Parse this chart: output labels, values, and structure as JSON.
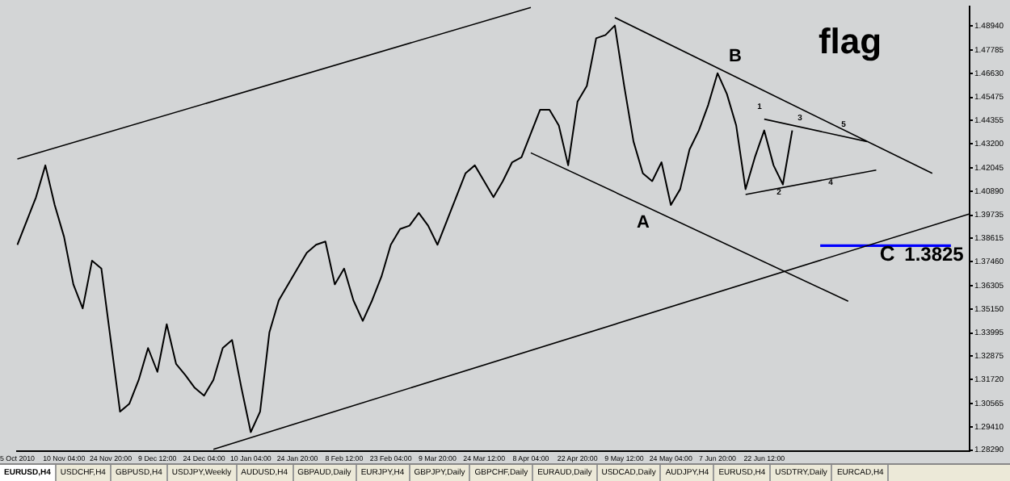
{
  "chart_data": {
    "type": "line",
    "title": "flag",
    "categories": [
      "5 Oct 2010",
      null,
      null,
      null,
      null,
      "10 Nov 04:00",
      null,
      null,
      null,
      null,
      "24 Nov 20:00",
      null,
      null,
      null,
      null,
      "9 Dec 12:00",
      null,
      null,
      null,
      null,
      "24 Dec 04:00",
      null,
      null,
      null,
      null,
      "10 Jan 04:00",
      null,
      null,
      null,
      null,
      "24 Jan 20:00",
      null,
      null,
      null,
      null,
      "8 Feb 12:00",
      null,
      null,
      null,
      null,
      "23 Feb 04:00",
      null,
      null,
      null,
      null,
      "9 Mar 20:00",
      null,
      null,
      null,
      null,
      "24 Mar 12:00",
      null,
      null,
      null,
      null,
      "8 Apr 04:00",
      null,
      null,
      null,
      null,
      "22 Apr 20:00",
      null,
      null,
      null,
      null,
      "9 May 12:00",
      null,
      null,
      null,
      null,
      "24 May 04:00",
      null,
      null,
      null,
      null,
      "7 Jun 20:00",
      null,
      null,
      null,
      null,
      "22 Jun 12:00",
      null,
      null,
      null,
      null,
      null,
      null,
      null,
      null,
      null,
      null,
      null,
      null,
      null,
      null,
      null,
      null,
      null,
      null,
      null,
      null,
      null,
      null
    ],
    "series": [
      {
        "color": "#000000",
        "values": [
          1.3829,
          1.3945,
          1.4061,
          1.4216,
          1.4023,
          1.3868,
          1.3636,
          1.3519,
          1.3752,
          1.3713,
          1.3365,
          1.3016,
          1.3055,
          1.3171,
          1.3326,
          1.321,
          1.3442,
          1.3249,
          1.3194,
          1.3132,
          1.3094,
          1.3171,
          1.3326,
          1.3365,
          1.3132,
          1.2916,
          1.3016,
          1.3403,
          1.3558,
          1.3636,
          1.3713,
          1.379,
          1.3829,
          1.3845,
          1.3636,
          1.3713,
          1.3558,
          1.3458,
          1.3558,
          1.3674,
          1.3829,
          1.3906,
          1.3922,
          1.3984,
          1.3922,
          1.3829,
          1.3945,
          1.4061,
          1.4177,
          1.4216,
          1.4139,
          1.4061,
          1.4139,
          1.4231,
          1.4255,
          1.4371,
          1.4487,
          1.4487,
          1.441,
          1.4216,
          1.4526,
          1.4603,
          1.4835,
          1.4851,
          1.4897,
          1.4603,
          1.4332,
          1.4177,
          1.4139,
          1.4231,
          1.4023,
          1.41,
          1.4293,
          1.4386,
          1.451,
          1.4665,
          1.4564,
          1.441,
          1.41,
          1.4255,
          1.4386,
          1.4216,
          1.4123,
          1.4386,
          null,
          null,
          null,
          null,
          null,
          null,
          null,
          null,
          null,
          null,
          null,
          null,
          null,
          null,
          null,
          null,
          null,
          null,
          null
        ]
      },
      {
        "type": "line",
        "color": "#000000",
        "values": [
          1.4247,
          null,
          null,
          null,
          null,
          null,
          null,
          null,
          null,
          null,
          null,
          null,
          null,
          null,
          null,
          null,
          null,
          null,
          null,
          null,
          null,
          null,
          null,
          null,
          null,
          null,
          null,
          null,
          null,
          null,
          null,
          null,
          null,
          null,
          null,
          null,
          null,
          null,
          null,
          null,
          null,
          null,
          null,
          null,
          null,
          null,
          null,
          null,
          null,
          null,
          null,
          null,
          null,
          null,
          null,
          1.4985,
          null,
          null,
          null,
          null,
          null,
          null,
          null,
          null,
          null,
          null,
          null,
          null,
          null,
          null,
          null,
          null,
          null,
          null,
          null,
          null,
          null,
          null,
          null,
          null,
          null,
          null,
          null,
          null,
          null,
          null,
          null,
          null,
          null,
          null,
          null,
          null,
          null,
          null,
          null,
          null,
          null,
          null,
          null,
          null,
          null,
          null,
          null
        ]
      },
      {
        "type": "line",
        "color": "#000000",
        "values": [
          null,
          null,
          null,
          null,
          null,
          null,
          null,
          null,
          null,
          null,
          null,
          null,
          null,
          null,
          null,
          null,
          null,
          null,
          null,
          null,
          null,
          1.2833,
          null,
          null,
          null,
          null,
          null,
          null,
          null,
          null,
          null,
          null,
          null,
          null,
          null,
          null,
          null,
          null,
          null,
          null,
          null,
          null,
          null,
          null,
          null,
          null,
          null,
          null,
          null,
          null,
          null,
          null,
          null,
          null,
          null,
          null,
          null,
          null,
          null,
          null,
          null,
          null,
          null,
          null,
          null,
          null,
          null,
          null,
          null,
          null,
          null,
          null,
          null,
          null,
          null,
          null,
          null,
          null,
          null,
          null,
          null,
          null,
          null,
          null,
          null,
          null,
          null,
          null,
          null,
          null,
          null,
          null,
          null,
          null,
          null,
          null,
          null,
          null,
          null,
          null,
          null,
          null,
          1.398
        ]
      },
      {
        "type": "line",
        "color": "#000000",
        "values": [
          null,
          null,
          null,
          null,
          null,
          null,
          null,
          null,
          null,
          null,
          null,
          null,
          null,
          null,
          null,
          null,
          null,
          null,
          null,
          null,
          null,
          null,
          null,
          null,
          null,
          null,
          null,
          null,
          null,
          null,
          null,
          null,
          null,
          null,
          null,
          null,
          null,
          null,
          null,
          null,
          null,
          null,
          null,
          null,
          null,
          null,
          null,
          null,
          null,
          null,
          null,
          null,
          null,
          null,
          null,
          null,
          null,
          null,
          null,
          null,
          null,
          null,
          null,
          null,
          1.4936,
          null,
          null,
          null,
          null,
          null,
          null,
          null,
          null,
          null,
          null,
          null,
          null,
          null,
          null,
          null,
          null,
          null,
          null,
          null,
          null,
          null,
          null,
          null,
          null,
          null,
          null,
          null,
          null,
          null,
          null,
          null,
          null,
          null,
          1.4177,
          null,
          null,
          null,
          null
        ]
      },
      {
        "type": "line",
        "color": "#000000",
        "values": [
          null,
          null,
          null,
          null,
          null,
          null,
          null,
          null,
          null,
          null,
          null,
          null,
          null,
          null,
          null,
          null,
          null,
          null,
          null,
          null,
          null,
          null,
          null,
          null,
          null,
          null,
          null,
          null,
          null,
          null,
          null,
          null,
          null,
          null,
          null,
          null,
          null,
          null,
          null,
          null,
          null,
          null,
          null,
          null,
          null,
          null,
          null,
          null,
          null,
          null,
          null,
          null,
          null,
          null,
          null,
          1.4277,
          null,
          null,
          null,
          null,
          null,
          null,
          null,
          null,
          null,
          null,
          null,
          null,
          null,
          null,
          null,
          null,
          null,
          null,
          null,
          null,
          null,
          null,
          null,
          null,
          null,
          null,
          null,
          null,
          null,
          null,
          null,
          null,
          null,
          1.3554,
          null,
          null,
          null,
          null,
          null,
          null,
          null,
          null,
          null,
          null,
          null,
          null,
          null
        ]
      },
      {
        "type": "line",
        "color": "#000000",
        "values": [
          null,
          null,
          null,
          null,
          null,
          null,
          null,
          null,
          null,
          null,
          null,
          null,
          null,
          null,
          null,
          null,
          null,
          null,
          null,
          null,
          null,
          null,
          null,
          null,
          null,
          null,
          null,
          null,
          null,
          null,
          null,
          null,
          null,
          null,
          null,
          null,
          null,
          null,
          null,
          null,
          null,
          null,
          null,
          null,
          null,
          null,
          null,
          null,
          null,
          null,
          null,
          null,
          null,
          null,
          null,
          null,
          null,
          null,
          null,
          null,
          null,
          null,
          null,
          null,
          null,
          null,
          null,
          null,
          null,
          null,
          null,
          null,
          null,
          null,
          null,
          null,
          null,
          null,
          null,
          null,
          1.4441,
          null,
          null,
          null,
          null,
          null,
          null,
          null,
          null,
          null,
          null,
          1.4332,
          null,
          null,
          null,
          null,
          null,
          null,
          null,
          null,
          null,
          null,
          null
        ]
      },
      {
        "type": "line",
        "color": "#000000",
        "values": [
          null,
          null,
          null,
          null,
          null,
          null,
          null,
          null,
          null,
          null,
          null,
          null,
          null,
          null,
          null,
          null,
          null,
          null,
          null,
          null,
          null,
          null,
          null,
          null,
          null,
          null,
          null,
          null,
          null,
          null,
          null,
          null,
          null,
          null,
          null,
          null,
          null,
          null,
          null,
          null,
          null,
          null,
          null,
          null,
          null,
          null,
          null,
          null,
          null,
          null,
          null,
          null,
          null,
          null,
          null,
          null,
          null,
          null,
          null,
          null,
          null,
          null,
          null,
          null,
          null,
          null,
          null,
          null,
          null,
          null,
          null,
          null,
          null,
          null,
          null,
          null,
          null,
          null,
          1.4074,
          null,
          null,
          null,
          null,
          null,
          null,
          null,
          null,
          null,
          null,
          null,
          null,
          null,
          1.4193,
          null,
          null,
          null,
          null,
          null,
          null,
          null,
          null,
          null,
          null
        ]
      },
      {
        "type": "line",
        "color": "#0000ff",
        "values": [
          null,
          null,
          null,
          null,
          null,
          null,
          null,
          null,
          null,
          null,
          null,
          null,
          null,
          null,
          null,
          null,
          null,
          null,
          null,
          null,
          null,
          null,
          null,
          null,
          null,
          null,
          null,
          null,
          null,
          null,
          null,
          null,
          null,
          null,
          null,
          null,
          null,
          null,
          null,
          null,
          null,
          null,
          null,
          null,
          null,
          null,
          null,
          null,
          null,
          null,
          null,
          null,
          null,
          null,
          null,
          null,
          null,
          null,
          null,
          null,
          null,
          null,
          null,
          null,
          null,
          null,
          null,
          null,
          null,
          null,
          null,
          null,
          null,
          null,
          null,
          null,
          null,
          null,
          null,
          null,
          null,
          null,
          null,
          null,
          null,
          null,
          1.3825,
          null,
          null,
          null,
          null,
          null,
          null,
          null,
          null,
          null,
          null,
          null,
          null,
          null,
          1.3825,
          null,
          null
        ]
      }
    ],
    "ylim": [
      1.2822,
      1.499
    ],
    "yticks": [
      {
        "value": 1.4894,
        "label": "1.48940"
      },
      {
        "value": 1.47785,
        "label": "1.47785"
      },
      {
        "value": 1.4663,
        "label": "1.46630"
      },
      {
        "value": 1.45475,
        "label": "1.45475"
      },
      {
        "value": 1.44355,
        "label": "1.44355"
      },
      {
        "value": 1.432,
        "label": "1.43200"
      },
      {
        "value": 1.42045,
        "label": "1.42045"
      },
      {
        "value": 1.4089,
        "label": "1.40890"
      },
      {
        "value": 1.39735,
        "label": "1.39735"
      },
      {
        "value": 1.38615,
        "label": "1.38615"
      },
      {
        "value": 1.3746,
        "label": "1.37460"
      },
      {
        "value": 1.36305,
        "label": "1.36305"
      },
      {
        "value": 1.3515,
        "label": "1.35150"
      },
      {
        "value": 1.33995,
        "label": "1.33995"
      },
      {
        "value": 1.32875,
        "label": "1.32875"
      },
      {
        "value": 1.3172,
        "label": "1.31720"
      },
      {
        "value": 1.30565,
        "label": "1.30565"
      },
      {
        "value": 1.2941,
        "label": "1.29410"
      },
      {
        "value": 1.2829,
        "label": "1.28290"
      }
    ],
    "marker": "none",
    "grid": false,
    "legend": false,
    "annotations": [
      "B",
      "A",
      "C",
      "1.3825",
      "1",
      "2",
      "3",
      "4",
      "5",
      "EURUSD,H4",
      "USDCHF,H4",
      "GBPUSD,H4",
      "USDJPY,Weekly",
      "AUDUSD,H4",
      "GBPAUD,Daily",
      "EURJPY,H4",
      "GBPJPY,Daily",
      "GBPCHF,Daily",
      "EURAUD,Daily",
      "USDCAD,Daily",
      "AUDJPY,H4",
      "EURUSD,H4",
      "USDTRY,Daily",
      "EURCAD,H4"
    ]
  }
}
